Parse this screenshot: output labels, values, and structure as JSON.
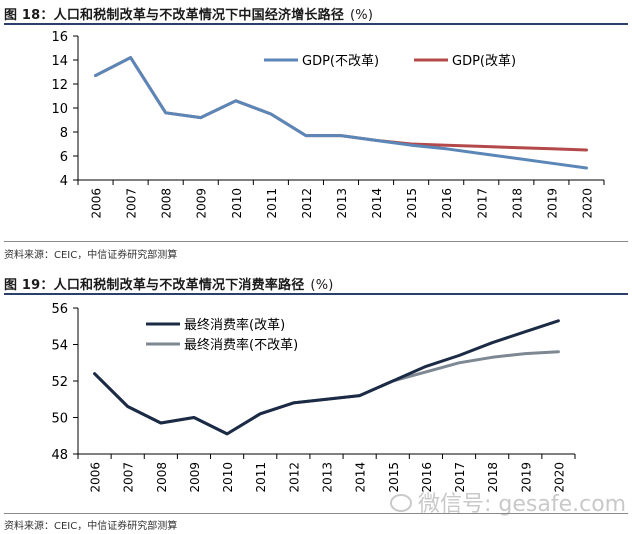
{
  "figure1": {
    "title": "图 18：人口和税制改革与不改革情况下中国经济增长路径",
    "unit": "(%)",
    "source": "资料来源：CEIC，中信证券研究部测算"
  },
  "figure2": {
    "title": "图 19：人口和税制改革与不改革情况下消费率路径",
    "unit": "(%)",
    "source": "资料来源：CEIC，中信证券研究部测算"
  },
  "watermark": {
    "text": "微信号: gesafe.com",
    "icon": "wechat-icon"
  },
  "chart_data": [
    {
      "type": "line",
      "title": "",
      "xlabel": "",
      "ylabel": "",
      "x": [
        "2006",
        "2007",
        "2008",
        "2009",
        "2010",
        "2011",
        "2012",
        "2013",
        "2014",
        "2015",
        "2016",
        "2017",
        "2018",
        "2019",
        "2020"
      ],
      "ylim": [
        4,
        16
      ],
      "yticks": [
        4,
        6,
        8,
        10,
        12,
        14,
        16
      ],
      "grid": false,
      "legend": "top-right",
      "series": [
        {
          "name": "GDP(不改革)",
          "color": "#5b87b8",
          "values": [
            12.7,
            14.2,
            9.6,
            9.2,
            10.6,
            9.5,
            7.7,
            7.7,
            7.3,
            6.9,
            6.6,
            6.2,
            5.8,
            5.4,
            5.0
          ]
        },
        {
          "name": "GDP(改革)",
          "color": "#b4494b",
          "values": [
            12.7,
            14.2,
            9.6,
            9.2,
            10.6,
            9.5,
            7.7,
            7.7,
            7.3,
            7.0,
            6.9,
            6.8,
            6.7,
            6.6,
            6.5
          ]
        }
      ]
    },
    {
      "type": "line",
      "title": "",
      "xlabel": "",
      "ylabel": "",
      "x": [
        "2006",
        "2007",
        "2008",
        "2009",
        "2010",
        "2011",
        "2012",
        "2013",
        "2014",
        "2015",
        "2016",
        "2017",
        "2018",
        "2019",
        "2020"
      ],
      "ylim": [
        48,
        56
      ],
      "yticks": [
        48,
        50,
        52,
        54,
        56
      ],
      "grid": false,
      "legend": "top-left",
      "series": [
        {
          "name": "最终消费率(改革)",
          "color": "#1c2b45",
          "values": [
            52.4,
            50.6,
            49.7,
            50.0,
            49.1,
            50.2,
            50.8,
            51.0,
            51.2,
            52.0,
            52.8,
            53.4,
            54.1,
            54.7,
            55.3
          ]
        },
        {
          "name": "最终消费率(不改革)",
          "color": "#7d8892",
          "values": [
            52.4,
            50.6,
            49.7,
            50.0,
            49.1,
            50.2,
            50.8,
            51.0,
            51.2,
            52.0,
            52.5,
            53.0,
            53.3,
            53.5,
            53.6
          ]
        }
      ]
    }
  ]
}
